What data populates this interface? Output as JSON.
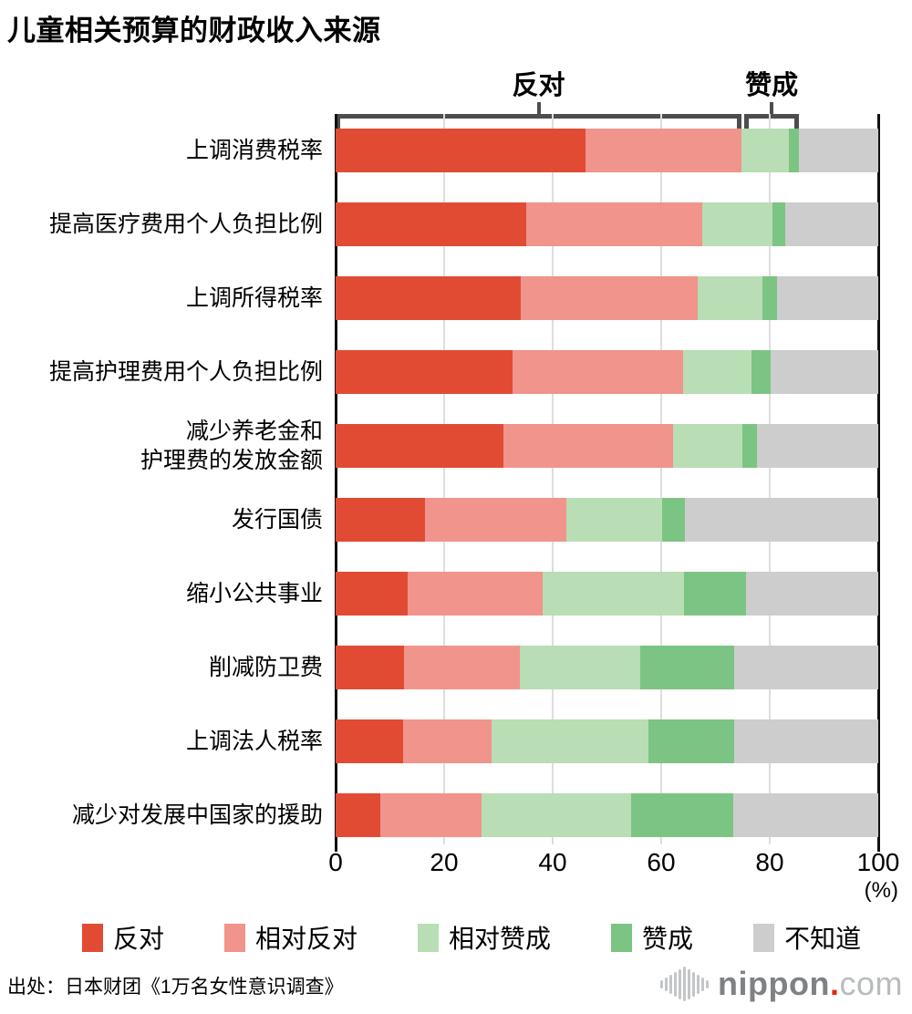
{
  "title": "儿童相关预算的财政收入来源",
  "axis": {
    "ticks": [
      "0",
      "20",
      "40",
      "60",
      "80",
      "100"
    ],
    "unit_label": "(%)"
  },
  "legend": [
    {
      "label": "反对",
      "color": "#e14b34"
    },
    {
      "label": "相对反对",
      "color": "#f0948c"
    },
    {
      "label": "相对赞成",
      "color": "#b9ddb4"
    },
    {
      "label": "赞成",
      "color": "#7cc483"
    },
    {
      "label": "不知道",
      "color": "#cdcdcd"
    }
  ],
  "chart_data": {
    "type": "bar",
    "stacked": true,
    "orientation": "horizontal",
    "title": "儿童相关预算的财政收入来源",
    "xlim": [
      0,
      100
    ],
    "xticks": [
      0,
      20,
      40,
      60,
      80,
      100
    ],
    "unit": "%",
    "categories": [
      "上调消费税率",
      "提高医疗费用个人负担比例",
      "上调所得税率",
      "提高护理费用个人负担比例",
      "减少养老金和\n护理费的发放金额",
      "发行国债",
      "缩小公共事业",
      "削减防卫费",
      "上调法人税率",
      "减少对发展中国家的援助"
    ],
    "series": [
      {
        "name": "反对",
        "color": "#e14b34",
        "values": [
          46.0,
          35.2,
          34.2,
          32.6,
          31.0,
          16.5,
          13.3,
          12.6,
          12.4,
          8.3
        ]
      },
      {
        "name": "相对反对",
        "color": "#f0948c",
        "values": [
          28.8,
          32.3,
          32.6,
          31.4,
          31.2,
          26.1,
          24.9,
          21.4,
          16.3,
          18.6
        ]
      },
      {
        "name": "相对赞成",
        "color": "#b9ddb4",
        "values": [
          8.7,
          13.0,
          11.8,
          12.6,
          12.7,
          17.5,
          26.0,
          22.2,
          28.9,
          27.6
        ]
      },
      {
        "name": "赞成",
        "color": "#7cc483",
        "values": [
          1.9,
          2.4,
          2.7,
          3.5,
          2.7,
          4.2,
          11.5,
          17.2,
          15.8,
          18.7
        ]
      },
      {
        "name": "不知道",
        "color": "#cdcdcd",
        "values": [
          14.6,
          17.1,
          18.7,
          19.9,
          22.4,
          35.7,
          24.3,
          26.6,
          26.6,
          26.8
        ]
      }
    ],
    "annotations": [
      {
        "label": "反对",
        "span": [
          0,
          74.8
        ]
      },
      {
        "label": "赞成",
        "span": [
          75.3,
          85.4
        ]
      }
    ]
  },
  "source": "出处：日本财团《1万名女性意识调查》",
  "logo": {
    "text_main": "nippon",
    "text_dot": ".",
    "text_tld": "com",
    "icon_bar_heights": [
      9,
      15,
      21,
      27,
      33,
      38,
      33,
      27,
      21,
      15,
      9
    ]
  }
}
